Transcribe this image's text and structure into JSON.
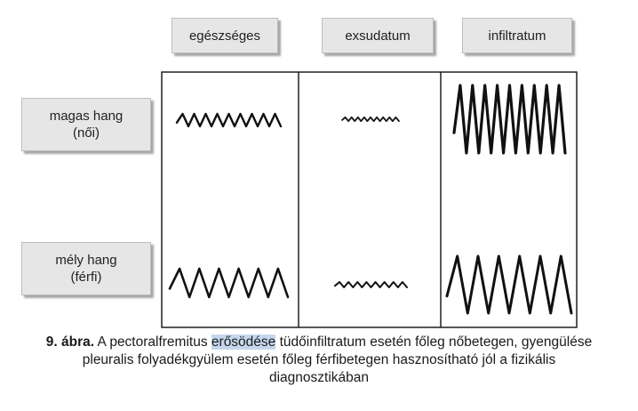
{
  "columns": [
    {
      "label": "egészséges"
    },
    {
      "label": "exsudatum"
    },
    {
      "label": "infiltratum"
    }
  ],
  "rows": [
    {
      "line1": "magas hang",
      "line2": "(női)"
    },
    {
      "line1": "mély hang",
      "line2": "(férfi)"
    }
  ],
  "caption": {
    "figure_label": "9. ábra.",
    "text_before": "A pectoralfremitus",
    "highlight": "erősödése",
    "text_after": "tüdőinfiltratum esetén főleg nőbetegen, gyengülése pleuralis folyadékgyülem esetén főleg férfibetegen hasznosítható jól a fizikális diagnosztikában"
  },
  "colors": {
    "wave": "#111111",
    "box_fill": "#e6e6e6",
    "highlight": "#c5d7ee"
  }
}
